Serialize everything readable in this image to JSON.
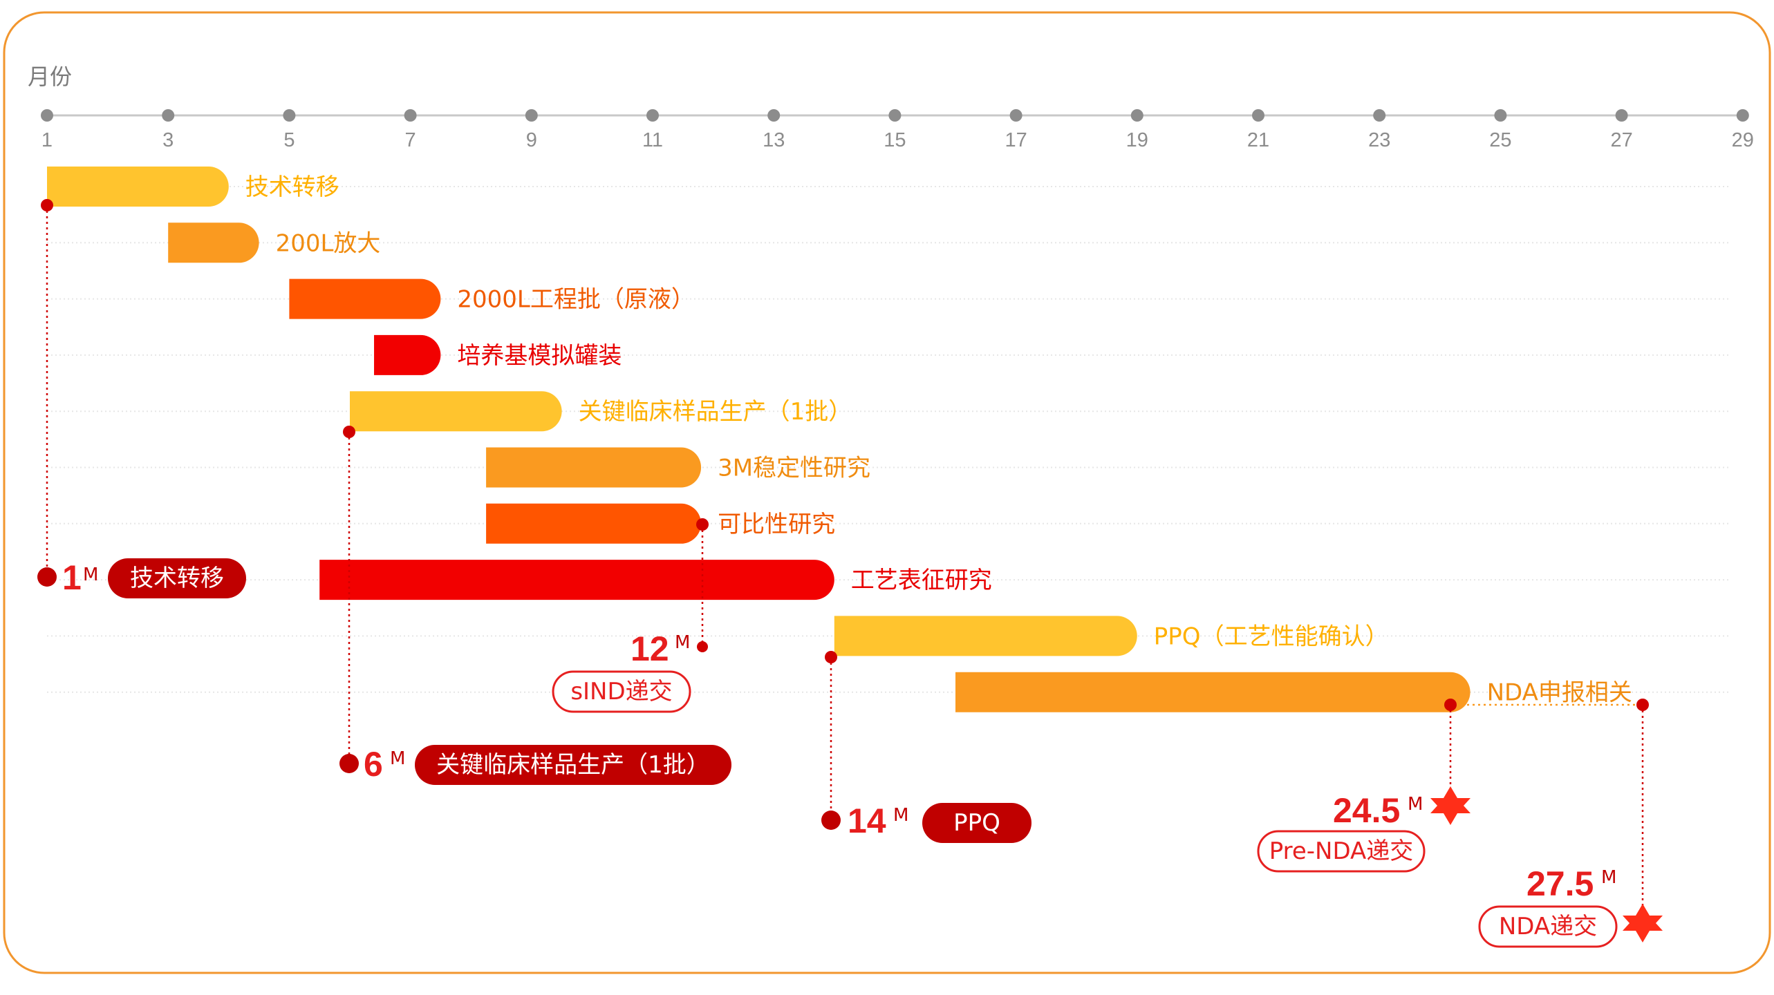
{
  "axis": {
    "title": "月份",
    "ticks": [
      "1",
      "3",
      "5",
      "7",
      "9",
      "11",
      "13",
      "15",
      "17",
      "19",
      "21",
      "23",
      "25",
      "27",
      "29"
    ]
  },
  "colors": {
    "frame": "#F2962E",
    "yellow": "#FFC42E",
    "orange": "#FA9A20",
    "deep_orange": "#FF5500",
    "red": "#F20000",
    "dark_red": "#C00000",
    "star_red": "#FF2E18"
  },
  "tasks": [
    {
      "label": "技术转移",
      "start": 1,
      "end": 4,
      "color": "#FFC42E",
      "text_color": "#FFB000"
    },
    {
      "label": "200L放大",
      "start": 3,
      "end": 4.5,
      "color": "#FA9A20",
      "text_color": "#F08C10"
    },
    {
      "label": "2000L工程批（原液）",
      "start": 5,
      "end": 7.5,
      "color": "#FF5500",
      "text_color": "#F05A00"
    },
    {
      "label": "培养基模拟罐装",
      "start": 6.4,
      "end": 7.5,
      "color": "#F20000",
      "text_color": "#E80000"
    },
    {
      "label": "关键临床样品生产（1批）",
      "start": 6,
      "end": 9.5,
      "color": "#FFC42E",
      "text_color": "#FFB000"
    },
    {
      "label": "3M稳定性研究",
      "start": 8.25,
      "end": 11.8,
      "color": "#FA9A20",
      "text_color": "#F08C10"
    },
    {
      "label": "可比性研究",
      "start": 8.25,
      "end": 11.8,
      "color": "#FF5500",
      "text_color": "#F05A00"
    },
    {
      "label": "工艺表征研究",
      "start": 5.5,
      "end": 14,
      "color": "#F20000",
      "text_color": "#E80000"
    },
    {
      "label": "PPQ（工艺性能确认）",
      "start": 14,
      "end": 19,
      "color": "#FFC42E",
      "text_color": "#FFB000"
    },
    {
      "label": "NDA申报相关",
      "start": 16,
      "end": 24.5,
      "color": "#FA9A20",
      "text_color": "#F08C10"
    }
  ],
  "milestones": [
    {
      "value": "1",
      "unit": "M",
      "label": "技术转移"
    },
    {
      "value": "6",
      "unit": "M",
      "label": "关键临床样品生产（1批）"
    },
    {
      "value": "12",
      "unit": "M",
      "label": "sIND递交"
    },
    {
      "value": "14",
      "unit": "M",
      "label": "PPQ"
    },
    {
      "value": "24.5",
      "unit": "M",
      "label": "Pre-NDA递交"
    },
    {
      "value": "27.5",
      "unit": "M",
      "label": "NDA递交"
    }
  ]
}
